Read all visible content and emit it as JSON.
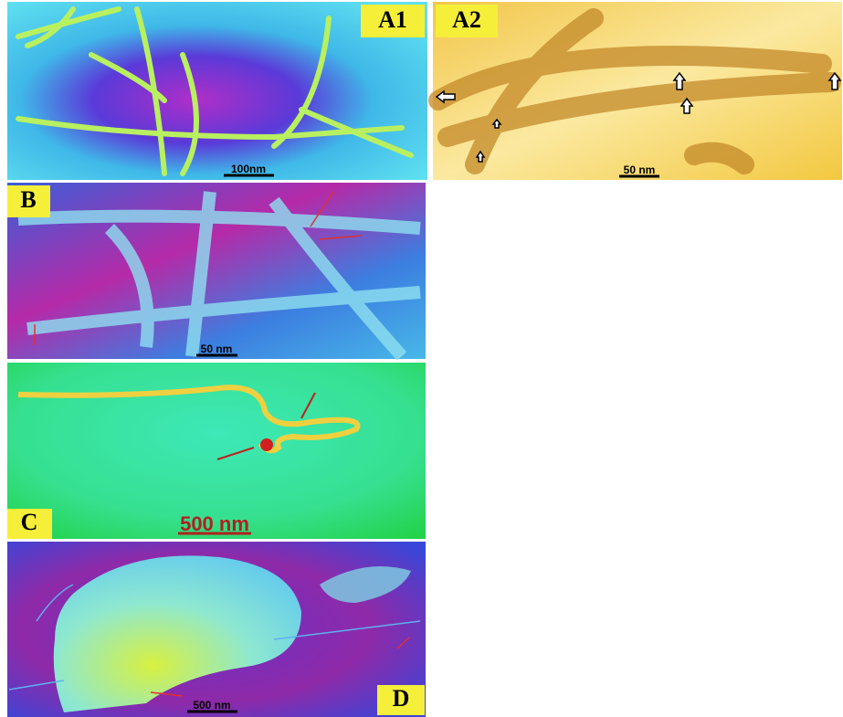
{
  "panels": [
    {
      "label": "A1",
      "scale_bar": "100nm"
    },
    {
      "label": "A2",
      "scale_bar": "50 nm"
    },
    {
      "label": "B",
      "scale_bar": "50 nm"
    },
    {
      "label": "C",
      "scale_bar": "500 nm"
    },
    {
      "label": "D",
      "scale_bar": "500 nm"
    }
  ]
}
